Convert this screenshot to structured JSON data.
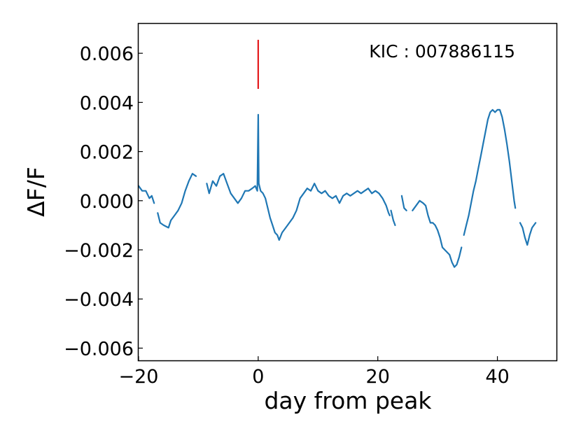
{
  "chart_data": {
    "type": "line",
    "title": "",
    "xlabel": "day from peak",
    "ylabel": "ΔF/F",
    "xlim": [
      -20,
      50
    ],
    "ylim": [
      -0.0065,
      0.0072
    ],
    "xticks": [
      -20,
      0,
      20,
      40
    ],
    "xtick_labels": [
      "−20",
      "0",
      "20",
      "40"
    ],
    "yticks": [
      -0.006,
      -0.004,
      -0.002,
      0.0,
      0.002,
      0.004,
      0.006
    ],
    "ytick_labels": [
      "−0.006",
      "−0.004",
      "−0.002",
      "0.000",
      "0.002",
      "0.004",
      "0.006"
    ],
    "grid": false,
    "annotation": "KIC : 007886115",
    "marker_line": {
      "x": 0,
      "y_range": [
        0.00455,
        0.00655
      ],
      "color": "#e41a1c"
    },
    "series": [
      {
        "color": "#1f77b4",
        "segments": [
          [
            [
              -20.0,
              0.0006
            ],
            [
              -19.4,
              0.0004
            ],
            [
              -18.8,
              0.0004
            ],
            [
              -18.2,
              0.0001
            ],
            [
              -17.8,
              0.0002
            ],
            [
              -17.4,
              -0.0001
            ]
          ],
          [
            [
              -16.8,
              -0.0005
            ],
            [
              -16.4,
              -0.0009
            ],
            [
              -15.8,
              -0.001
            ],
            [
              -15.0,
              -0.0011
            ],
            [
              -14.6,
              -0.0008
            ],
            [
              -14.0,
              -0.0006
            ],
            [
              -13.4,
              -0.0004
            ],
            [
              -12.8,
              -0.0001
            ],
            [
              -12.2,
              0.0004
            ],
            [
              -11.6,
              0.0008
            ],
            [
              -11.0,
              0.0011
            ],
            [
              -10.4,
              0.001
            ]
          ],
          [
            [
              -8.6,
              0.0007
            ],
            [
              -8.2,
              0.0003
            ],
            [
              -7.6,
              0.0008
            ],
            [
              -7.0,
              0.0006
            ],
            [
              -6.4,
              0.001
            ],
            [
              -5.8,
              0.0011
            ],
            [
              -5.2,
              0.0007
            ],
            [
              -4.6,
              0.0003
            ],
            [
              -4.0,
              0.0001
            ],
            [
              -3.4,
              -0.0001
            ],
            [
              -2.8,
              0.0001
            ],
            [
              -2.2,
              0.0004
            ],
            [
              -1.6,
              0.0004
            ],
            [
              -1.0,
              0.0005
            ],
            [
              -0.5,
              0.0006
            ],
            [
              -0.15,
              0.0004
            ],
            [
              0.0,
              0.0035
            ],
            [
              0.1,
              0.0007
            ],
            [
              0.4,
              0.0004
            ],
            [
              0.8,
              0.0003
            ],
            [
              1.2,
              0.0001
            ],
            [
              1.6,
              -0.0003
            ],
            [
              2.0,
              -0.0007
            ],
            [
              2.4,
              -0.001
            ],
            [
              2.8,
              -0.0013
            ],
            [
              3.2,
              -0.0014
            ],
            [
              3.5,
              -0.0016
            ],
            [
              4.0,
              -0.0013
            ],
            [
              4.6,
              -0.0011
            ],
            [
              5.2,
              -0.0009
            ],
            [
              5.8,
              -0.0007
            ],
            [
              6.4,
              -0.0004
            ],
            [
              7.0,
              0.0001
            ],
            [
              7.6,
              0.0003
            ],
            [
              8.2,
              0.0005
            ],
            [
              8.8,
              0.0004
            ],
            [
              9.4,
              0.0007
            ],
            [
              10.0,
              0.0004
            ],
            [
              10.6,
              0.0003
            ],
            [
              11.2,
              0.0004
            ],
            [
              11.8,
              0.0002
            ],
            [
              12.4,
              0.0001
            ],
            [
              13.0,
              0.0002
            ],
            [
              13.6,
              -0.0001
            ],
            [
              14.2,
              0.0002
            ],
            [
              14.8,
              0.0003
            ],
            [
              15.4,
              0.0002
            ],
            [
              16.0,
              0.0003
            ],
            [
              16.6,
              0.0004
            ],
            [
              17.2,
              0.0003
            ],
            [
              17.8,
              0.0004
            ],
            [
              18.4,
              0.0005
            ],
            [
              19.0,
              0.0003
            ],
            [
              19.6,
              0.0004
            ],
            [
              20.2,
              0.0003
            ],
            [
              20.8,
              0.0001
            ],
            [
              21.4,
              -0.0002
            ],
            [
              21.8,
              -0.0005
            ],
            [
              22.0,
              -0.0006
            ]
          ],
          [
            [
              22.2,
              -0.0004
            ],
            [
              22.6,
              -0.0008
            ],
            [
              22.9,
              -0.001
            ]
          ],
          [
            [
              24.0,
              0.0002
            ],
            [
              24.4,
              -0.0003
            ],
            [
              24.8,
              -0.0004
            ]
          ],
          [
            [
              25.8,
              -0.0004
            ],
            [
              26.4,
              -0.0002
            ],
            [
              27.0,
              0.0
            ],
            [
              27.6,
              -0.0001
            ],
            [
              28.0,
              -0.0002
            ],
            [
              28.4,
              -0.0006
            ],
            [
              28.8,
              -0.0009
            ],
            [
              29.2,
              -0.0009
            ],
            [
              29.6,
              -0.001
            ],
            [
              30.0,
              -0.0012
            ],
            [
              30.4,
              -0.0015
            ],
            [
              30.8,
              -0.0019
            ],
            [
              31.2,
              -0.002
            ],
            [
              31.6,
              -0.0021
            ],
            [
              32.0,
              -0.0022
            ],
            [
              32.4,
              -0.0025
            ],
            [
              32.8,
              -0.0027
            ],
            [
              33.2,
              -0.0026
            ],
            [
              33.6,
              -0.0023
            ],
            [
              34.0,
              -0.0019
            ]
          ],
          [
            [
              34.4,
              -0.0014
            ],
            [
              34.8,
              -0.001
            ],
            [
              35.2,
              -0.0006
            ],
            [
              35.6,
              -0.0001
            ],
            [
              36.0,
              0.0004
            ],
            [
              36.4,
              0.0008
            ],
            [
              36.8,
              0.0013
            ],
            [
              37.2,
              0.0018
            ],
            [
              37.6,
              0.0023
            ],
            [
              38.0,
              0.0028
            ],
            [
              38.4,
              0.0033
            ],
            [
              38.8,
              0.0036
            ],
            [
              39.2,
              0.0037
            ],
            [
              39.6,
              0.0036
            ],
            [
              40.0,
              0.0037
            ],
            [
              40.4,
              0.0037
            ],
            [
              40.8,
              0.0034
            ],
            [
              41.2,
              0.0029
            ],
            [
              41.6,
              0.0023
            ],
            [
              42.0,
              0.0016
            ],
            [
              42.4,
              0.0008
            ],
            [
              42.8,
              0.0
            ],
            [
              43.0,
              -0.0003
            ]
          ],
          [
            [
              43.8,
              -0.0009
            ],
            [
              44.2,
              -0.0011
            ],
            [
              44.6,
              -0.0015
            ],
            [
              45.0,
              -0.0018
            ],
            [
              45.4,
              -0.0014
            ],
            [
              45.8,
              -0.0011
            ],
            [
              46.4,
              -0.0009
            ]
          ]
        ]
      }
    ]
  }
}
